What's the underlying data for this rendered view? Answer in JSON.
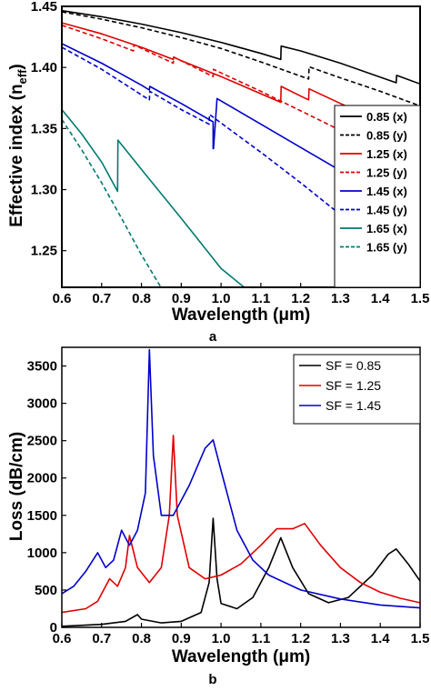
{
  "chart_data": [
    {
      "panel_label": "a",
      "type": "line",
      "xlabel": "Wavelength (μm)",
      "ylabel_main": "Effective index (n",
      "ylabel_sub": "eff",
      "ylabel_close": ")",
      "xlim": [
        0.6,
        1.5
      ],
      "ylim": [
        1.22,
        1.45
      ],
      "xticks": [
        "0.6",
        "0.7",
        "0.8",
        "0.9",
        "1.0",
        "1.1",
        "1.2",
        "1.3",
        "1.4",
        "1.5"
      ],
      "yticks": [
        "1.25",
        "1.30",
        "1.35",
        "1.40",
        "1.45"
      ],
      "legend_position": "right",
      "series": [
        {
          "name": "0.85 (x)",
          "color": "#000000",
          "dash": "solid",
          "points": [
            [
              0.6,
              1.4465
            ],
            [
              0.7,
              1.4415
            ],
            [
              0.8,
              1.4355
            ],
            [
              0.9,
              1.4285
            ],
            [
              1.0,
              1.4205
            ],
            [
              1.1,
              1.4115
            ],
            [
              1.15,
              1.4065
            ],
            [
              1.151,
              1.4175
            ],
            [
              1.2,
              1.4135
            ],
            [
              1.3,
              1.4035
            ],
            [
              1.44,
              1.3875
            ],
            [
              1.441,
              1.3935
            ],
            [
              1.5,
              1.3865
            ]
          ]
        },
        {
          "name": "0.85 (y)",
          "color": "#000000",
          "dash": "dashed",
          "points": [
            [
              0.6,
              1.4455
            ],
            [
              0.7,
              1.4395
            ],
            [
              0.8,
              1.4325
            ],
            [
              0.9,
              1.4245
            ],
            [
              1.0,
              1.4155
            ],
            [
              1.1,
              1.4045
            ],
            [
              1.22,
              1.3905
            ],
            [
              1.221,
              1.4005
            ],
            [
              1.3,
              1.3915
            ],
            [
              1.4,
              1.3805
            ],
            [
              1.5,
              1.3685
            ]
          ]
        },
        {
          "name": "1.25 (x)",
          "color": "#e00000",
          "dash": "solid",
          "points": [
            [
              0.6,
              1.4365
            ],
            [
              0.7,
              1.4275
            ],
            [
              0.8,
              1.4165
            ],
            [
              0.88,
              1.4065
            ],
            [
              0.881,
              1.4085
            ],
            [
              0.9,
              1.4055
            ],
            [
              1.0,
              1.3925
            ],
            [
              1.1,
              1.3785
            ],
            [
              1.15,
              1.3715
            ],
            [
              1.151,
              1.3845
            ],
            [
              1.2,
              1.3765
            ],
            [
              1.22,
              1.3735
            ],
            [
              1.221,
              1.3825
            ],
            [
              1.3,
              1.3705
            ],
            [
              1.4,
              1.3555
            ],
            [
              1.5,
              1.3405
            ]
          ]
        },
        {
          "name": "1.25 (y)",
          "color": "#e00000",
          "dash": "dashed",
          "points": [
            [
              0.6,
              1.4345
            ],
            [
              0.7,
              1.4235
            ],
            [
              0.78,
              1.4135
            ],
            [
              0.781,
              1.4185
            ],
            [
              0.8,
              1.4155
            ],
            [
              0.88,
              1.4035
            ],
            [
              0.881,
              1.4085
            ],
            [
              0.9,
              1.4055
            ],
            [
              0.98,
              1.3925
            ],
            [
              0.981,
              1.3985
            ],
            [
              1.0,
              1.3955
            ],
            [
              1.1,
              1.3805
            ],
            [
              1.2,
              1.3645
            ],
            [
              1.3,
              1.3485
            ],
            [
              1.4,
              1.3325
            ],
            [
              1.5,
              1.3165
            ]
          ]
        },
        {
          "name": "1.45 (x)",
          "color": "#0000cc",
          "dash": "solid",
          "points": [
            [
              0.6,
              1.4195
            ],
            [
              0.7,
              1.4035
            ],
            [
              0.8,
              1.3855
            ],
            [
              0.82,
              1.3815
            ],
            [
              0.821,
              1.3845
            ],
            [
              0.9,
              1.3705
            ],
            [
              0.98,
              1.3555
            ],
            [
              0.98,
              1.3335
            ],
            [
              0.981,
              1.3335
            ],
            [
              0.99,
              1.3745
            ],
            [
              1.1,
              1.3535
            ],
            [
              1.2,
              1.3345
            ],
            [
              1.3,
              1.3155
            ],
            [
              1.4,
              1.2965
            ],
            [
              1.5,
              1.2775
            ]
          ]
        },
        {
          "name": "1.45 (y)",
          "color": "#0000cc",
          "dash": "dashed",
          "points": [
            [
              0.6,
              1.4165
            ],
            [
              0.7,
              1.3985
            ],
            [
              0.8,
              1.3775
            ],
            [
              0.82,
              1.3735
            ],
            [
              0.821,
              1.3805
            ],
            [
              0.9,
              1.3655
            ],
            [
              0.97,
              1.3535
            ],
            [
              0.971,
              1.3615
            ],
            [
              1.0,
              1.3545
            ],
            [
              1.1,
              1.3305
            ],
            [
              1.2,
              1.3055
            ],
            [
              1.3,
              1.2795
            ],
            [
              1.4,
              1.2535
            ],
            [
              1.5,
              1.2275
            ]
          ]
        },
        {
          "name": "1.65 (x)",
          "color": "#007a70",
          "dash": "solid",
          "points": [
            [
              0.6,
              1.3655
            ],
            [
              0.65,
              1.3455
            ],
            [
              0.7,
              1.3225
            ],
            [
              0.74,
              1.2985
            ],
            [
              0.741,
              1.3405
            ],
            [
              0.8,
              1.3165
            ],
            [
              0.9,
              1.2765
            ],
            [
              1.0,
              1.2355
            ],
            [
              1.06,
              1.2195
            ]
          ]
        },
        {
          "name": "1.65 (y)",
          "color": "#007a70",
          "dash": "dashed",
          "points": [
            [
              0.6,
              1.3575
            ],
            [
              0.65,
              1.3325
            ],
            [
              0.7,
              1.3055
            ],
            [
              0.75,
              1.2765
            ],
            [
              0.8,
              1.2465
            ],
            [
              0.85,
              1.2195
            ]
          ]
        }
      ]
    },
    {
      "panel_label": "b",
      "type": "line",
      "xlabel": "Wavelength (μm)",
      "ylabel": "Loss (dB/cm)",
      "xlim": [
        0.6,
        1.5
      ],
      "ylim": [
        0,
        3750
      ],
      "xticks": [
        "0.6",
        "0.7",
        "0.8",
        "0.9",
        "1.0",
        "1.1",
        "1.2",
        "1.3",
        "1.4",
        "1.5"
      ],
      "yticks": [
        "0",
        "500",
        "1000",
        "1500",
        "2000",
        "2500",
        "3000",
        "3500"
      ],
      "legend_position": "top-right",
      "series": [
        {
          "name": "SF = 0.85",
          "color": "#000000",
          "dash": "solid",
          "points": [
            [
              0.6,
              15
            ],
            [
              0.7,
              40
            ],
            [
              0.76,
              80
            ],
            [
              0.79,
              170
            ],
            [
              0.8,
              110
            ],
            [
              0.85,
              60
            ],
            [
              0.9,
              80
            ],
            [
              0.95,
              200
            ],
            [
              0.97,
              600
            ],
            [
              0.98,
              1460
            ],
            [
              0.99,
              650
            ],
            [
              1.0,
              320
            ],
            [
              1.04,
              250
            ],
            [
              1.08,
              400
            ],
            [
              1.12,
              800
            ],
            [
              1.15,
              1200
            ],
            [
              1.18,
              800
            ],
            [
              1.22,
              450
            ],
            [
              1.27,
              330
            ],
            [
              1.32,
              400
            ],
            [
              1.38,
              700
            ],
            [
              1.42,
              980
            ],
            [
              1.44,
              1050
            ],
            [
              1.47,
              850
            ],
            [
              1.5,
              620
            ]
          ]
        },
        {
          "name": "SF = 1.25",
          "color": "#e00000",
          "dash": "solid",
          "points": [
            [
              0.6,
              200
            ],
            [
              0.66,
              250
            ],
            [
              0.69,
              350
            ],
            [
              0.72,
              650
            ],
            [
              0.74,
              550
            ],
            [
              0.76,
              800
            ],
            [
              0.77,
              1230
            ],
            [
              0.79,
              800
            ],
            [
              0.82,
              600
            ],
            [
              0.85,
              800
            ],
            [
              0.87,
              1500
            ],
            [
              0.88,
              2570
            ],
            [
              0.89,
              1500
            ],
            [
              0.92,
              800
            ],
            [
              0.96,
              650
            ],
            [
              1.0,
              700
            ],
            [
              1.05,
              850
            ],
            [
              1.1,
              1100
            ],
            [
              1.14,
              1320
            ],
            [
              1.18,
              1320
            ],
            [
              1.21,
              1390
            ],
            [
              1.25,
              1100
            ],
            [
              1.3,
              800
            ],
            [
              1.35,
              600
            ],
            [
              1.4,
              470
            ],
            [
              1.45,
              390
            ],
            [
              1.5,
              330
            ]
          ]
        },
        {
          "name": "SF = 1.45",
          "color": "#0000cc",
          "dash": "solid",
          "points": [
            [
              0.6,
              450
            ],
            [
              0.63,
              550
            ],
            [
              0.66,
              750
            ],
            [
              0.69,
              1000
            ],
            [
              0.71,
              800
            ],
            [
              0.73,
              900
            ],
            [
              0.75,
              1300
            ],
            [
              0.77,
              1100
            ],
            [
              0.79,
              1300
            ],
            [
              0.81,
              1800
            ],
            [
              0.82,
              3720
            ],
            [
              0.83,
              2300
            ],
            [
              0.85,
              1500
            ],
            [
              0.88,
              1500
            ],
            [
              0.92,
              1900
            ],
            [
              0.96,
              2400
            ],
            [
              0.98,
              2510
            ],
            [
              1.0,
              2100
            ],
            [
              1.04,
              1300
            ],
            [
              1.08,
              900
            ],
            [
              1.12,
              700
            ],
            [
              1.2,
              500
            ],
            [
              1.3,
              380
            ],
            [
              1.4,
              300
            ],
            [
              1.5,
              260
            ]
          ]
        }
      ]
    }
  ]
}
